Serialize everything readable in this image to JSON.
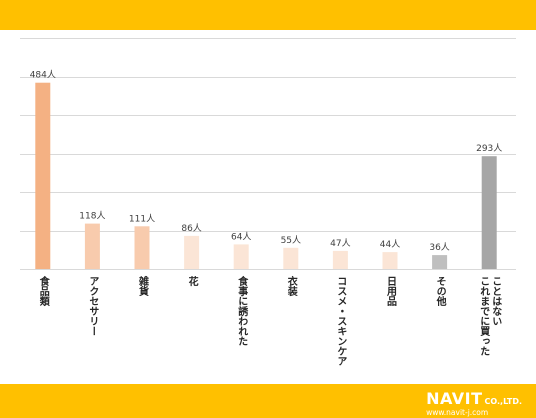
{
  "theme": {
    "band_color": "#FFC000",
    "grid_color": "#d9d9d9"
  },
  "chart_data": {
    "type": "bar",
    "title": "",
    "xlabel": "",
    "ylabel": "",
    "ylim": [
      0,
      600
    ],
    "grid": true,
    "gridlines": [
      0,
      100,
      200,
      300,
      400,
      500,
      600
    ],
    "categories": [
      "食品類",
      "アクセサリー",
      "雑貨",
      "花",
      "食事に誘われた",
      "衣装",
      "コスメ・スキンケア",
      "日用品",
      "その他",
      "これまでに買ったことはない"
    ],
    "category_lines": [
      [
        "食品類"
      ],
      [
        "アクセサリー"
      ],
      [
        "雑貨"
      ],
      [
        "花"
      ],
      [
        "食事に誘われた"
      ],
      [
        "衣装"
      ],
      [
        "コスメ・スキンケア"
      ],
      [
        "日用品"
      ],
      [
        "その他"
      ],
      [
        "これまでに買った",
        "ことはない"
      ]
    ],
    "values": [
      484,
      118,
      111,
      86,
      64,
      55,
      47,
      44,
      36,
      293
    ],
    "value_labels": [
      "484人",
      "118人",
      "111人",
      "86人",
      "64人",
      "55人",
      "47人",
      "44人",
      "36人",
      "293人"
    ],
    "colors": [
      "#F4B183",
      "#F8CBAD",
      "#F8CBAD",
      "#FBE5D6",
      "#FBE5D6",
      "#FBE5D6",
      "#FBE5D6",
      "#FBE5D6",
      "#BFBFBF",
      "#A6A6A6"
    ]
  },
  "logo": {
    "name": "NAVIT",
    "suffix": "CO.,LTD.",
    "url": "www.navit-j.com"
  }
}
